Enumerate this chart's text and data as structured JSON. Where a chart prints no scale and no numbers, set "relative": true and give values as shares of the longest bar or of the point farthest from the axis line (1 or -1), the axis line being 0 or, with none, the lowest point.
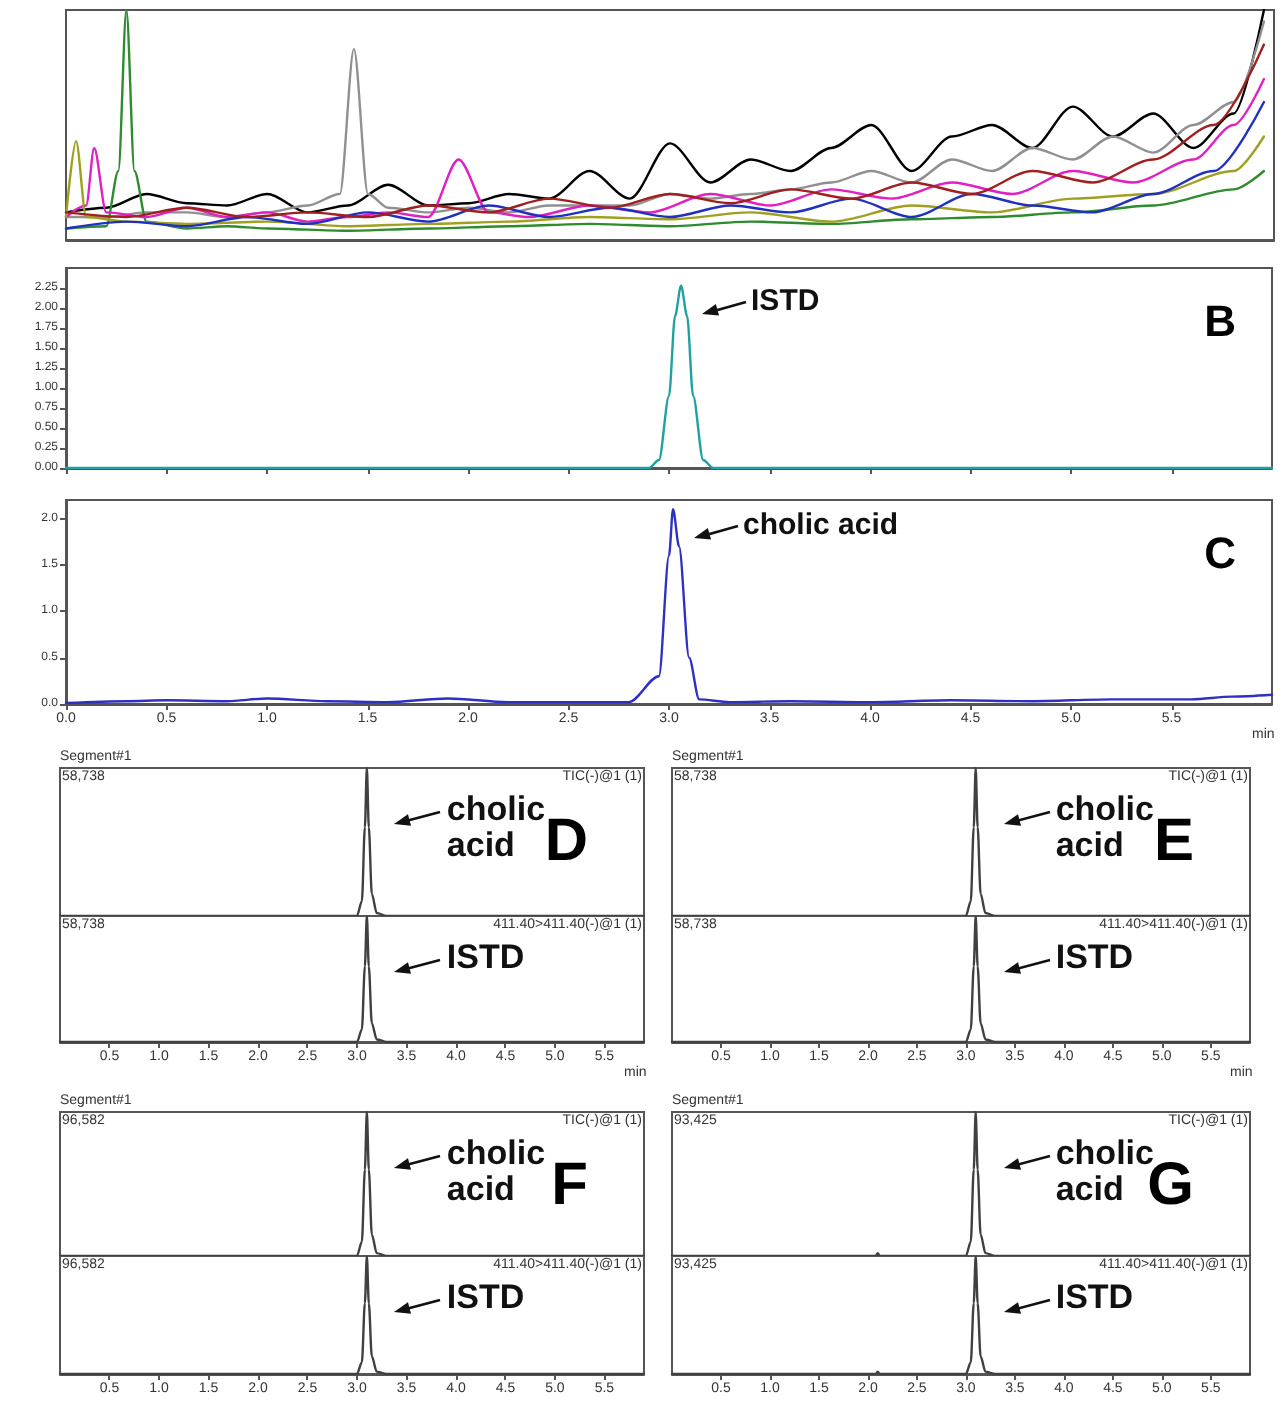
{
  "chart_data": [
    {
      "type": "line",
      "relative": true,
      "tick_labels": false,
      "xlim": [
        0,
        6
      ],
      "series": [
        {
          "color": "#000000",
          "x": [
            0,
            0.2,
            0.4,
            0.6,
            0.8,
            1.0,
            1.2,
            1.4,
            1.6,
            1.8,
            2.0,
            2.2,
            2.4,
            2.6,
            2.8,
            3.0,
            3.2,
            3.4,
            3.6,
            3.8,
            4.0,
            4.2,
            4.4,
            4.6,
            4.8,
            5.0,
            5.2,
            5.4,
            5.6,
            5.8,
            5.95
          ],
          "values": [
            0.12,
            0.14,
            0.2,
            0.16,
            0.15,
            0.2,
            0.12,
            0.15,
            0.24,
            0.15,
            0.16,
            0.2,
            0.18,
            0.3,
            0.18,
            0.42,
            0.25,
            0.35,
            0.3,
            0.4,
            0.5,
            0.3,
            0.45,
            0.5,
            0.4,
            0.58,
            0.45,
            0.55,
            0.4,
            0.55,
            1
          ]
        },
        {
          "color": "#909090",
          "x": [
            0,
            0.2,
            0.4,
            0.6,
            0.8,
            1.0,
            1.2,
            1.36,
            1.43,
            1.5,
            1.6,
            1.8,
            2.0,
            2.2,
            2.4,
            2.6,
            2.8,
            3.0,
            3.2,
            3.4,
            3.6,
            3.8,
            4.0,
            4.2,
            4.4,
            4.6,
            4.8,
            5.0,
            5.2,
            5.4,
            5.6,
            5.8,
            5.95
          ],
          "values": [
            0.1,
            0.1,
            0.12,
            0.12,
            0.1,
            0.12,
            0.15,
            0.2,
            0.83,
            0.2,
            0.14,
            0.12,
            0.14,
            0.12,
            0.15,
            0.15,
            0.15,
            0.2,
            0.18,
            0.2,
            0.22,
            0.25,
            0.3,
            0.25,
            0.35,
            0.3,
            0.4,
            0.35,
            0.45,
            0.38,
            0.5,
            0.6,
            0.95
          ]
        },
        {
          "color": "#2e8b2e",
          "x": [
            0,
            0.2,
            0.26,
            0.3,
            0.34,
            0.4,
            0.6,
            0.8,
            1.0,
            1.4,
            1.8,
            2.2,
            2.6,
            3.0,
            3.4,
            3.8,
            4.2,
            4.6,
            5.0,
            5.4,
            5.8,
            5.95
          ],
          "values": [
            0.05,
            0.06,
            0.3,
            1,
            0.3,
            0.08,
            0.05,
            0.06,
            0.05,
            0.04,
            0.05,
            0.06,
            0.07,
            0.06,
            0.08,
            0.07,
            0.09,
            0.1,
            0.12,
            0.15,
            0.22,
            0.3
          ]
        },
        {
          "color": "#e020c0",
          "x": [
            0,
            0.1,
            0.14,
            0.2,
            0.4,
            0.6,
            0.8,
            1.0,
            1.2,
            1.4,
            1.6,
            1.8,
            1.95,
            2.1,
            2.3,
            2.6,
            2.9,
            3.2,
            3.5,
            3.8,
            4.1,
            4.4,
            4.7,
            5.0,
            5.3,
            5.6,
            5.8,
            5.95
          ],
          "values": [
            0.1,
            0.15,
            0.4,
            0.12,
            0.1,
            0.14,
            0.1,
            0.12,
            0.08,
            0.1,
            0.12,
            0.1,
            0.35,
            0.12,
            0.1,
            0.15,
            0.12,
            0.2,
            0.15,
            0.22,
            0.18,
            0.25,
            0.2,
            0.3,
            0.25,
            0.35,
            0.5,
            0.7
          ]
        },
        {
          "color": "#a0a020",
          "x": [
            0,
            0.05,
            0.1,
            0.3,
            0.6,
            1.0,
            1.4,
            1.8,
            2.2,
            2.6,
            3.0,
            3.4,
            3.8,
            4.2,
            4.6,
            5.0,
            5.4,
            5.8,
            5.95
          ],
          "values": [
            0.1,
            0.43,
            0.1,
            0.08,
            0.07,
            0.08,
            0.06,
            0.07,
            0.08,
            0.1,
            0.09,
            0.12,
            0.08,
            0.15,
            0.12,
            0.18,
            0.2,
            0.3,
            0.45
          ]
        },
        {
          "color": "#2030c0",
          "x": [
            0,
            0.3,
            0.6,
            0.9,
            1.2,
            1.5,
            1.8,
            2.1,
            2.4,
            2.7,
            3.0,
            3.3,
            3.6,
            3.9,
            4.2,
            4.5,
            4.8,
            5.1,
            5.4,
            5.7,
            5.95
          ],
          "values": [
            0.05,
            0.08,
            0.06,
            0.1,
            0.07,
            0.12,
            0.08,
            0.15,
            0.1,
            0.14,
            0.1,
            0.15,
            0.12,
            0.18,
            0.1,
            0.2,
            0.15,
            0.12,
            0.2,
            0.3,
            0.6
          ]
        },
        {
          "color": "#a02020",
          "x": [
            0,
            0.3,
            0.6,
            0.9,
            1.2,
            1.5,
            1.8,
            2.1,
            2.4,
            2.7,
            3.0,
            3.3,
            3.6,
            3.9,
            4.2,
            4.5,
            4.8,
            5.1,
            5.4,
            5.7,
            5.95
          ],
          "values": [
            0.12,
            0.1,
            0.14,
            0.1,
            0.12,
            0.1,
            0.15,
            0.12,
            0.18,
            0.14,
            0.2,
            0.16,
            0.22,
            0.18,
            0.25,
            0.2,
            0.3,
            0.25,
            0.35,
            0.5,
            0.85
          ]
        }
      ]
    },
    {
      "type": "line",
      "title": "B",
      "tick_labels": "y",
      "xlim": [
        0,
        6
      ],
      "xticks": [
        {
          "value": 0,
          "label": null
        },
        {
          "value": 0.5,
          "label": null
        },
        {
          "value": 1,
          "label": null
        },
        {
          "value": 1.5,
          "label": null
        },
        {
          "value": 2,
          "label": null
        },
        {
          "value": 2.5,
          "label": null
        },
        {
          "value": 3,
          "label": null
        },
        {
          "value": 3.5,
          "label": null
        },
        {
          "value": 4,
          "label": null
        },
        {
          "value": 4.5,
          "label": null
        },
        {
          "value": 5,
          "label": null
        },
        {
          "value": 5.5,
          "label": null
        }
      ],
      "ylim": [
        0,
        2.5
      ],
      "yticks": [
        {
          "value": 0,
          "label": "0.00"
        },
        {
          "value": 0.25,
          "label": "0.25"
        },
        {
          "value": 0.5,
          "label": "0.50"
        },
        {
          "value": 0.75,
          "label": "0.75"
        },
        {
          "value": 1,
          "label": "1.00"
        },
        {
          "value": 1.25,
          "label": "1.25"
        },
        {
          "value": 1.5,
          "label": "1.50"
        },
        {
          "value": 1.75,
          "label": "1.75"
        },
        {
          "value": 2,
          "label": "2.00"
        },
        {
          "value": 2.25,
          "label": "2.25"
        }
      ],
      "annotations": [
        {
          "text": "ISTD",
          "x": 3.06,
          "y": 2.28
        }
      ],
      "series": [
        {
          "color": "#20a0a0",
          "x": [
            0,
            2.9,
            2.95,
            3.0,
            3.03,
            3.06,
            3.09,
            3.12,
            3.17,
            3.22,
            6
          ],
          "values": [
            0,
            0,
            0.1,
            0.9,
            1.9,
            2.28,
            1.9,
            0.9,
            0.1,
            0,
            0
          ]
        }
      ]
    },
    {
      "type": "line",
      "title": "C",
      "xlabel": "min",
      "xlim": [
        0,
        6
      ],
      "xticks": [
        {
          "value": 0,
          "label": "0.0"
        },
        0.5,
        {
          "value": 1,
          "label": "1.0"
        },
        1.5,
        {
          "value": 2,
          "label": "2.0"
        },
        2.5,
        {
          "value": 3,
          "label": "3.0"
        },
        3.5,
        {
          "value": 4,
          "label": "4.0"
        },
        4.5,
        {
          "value": 5,
          "label": "5.0"
        },
        5.5
      ],
      "ylim": [
        0,
        2.2
      ],
      "yticks": [
        {
          "value": 0,
          "label": "0.0"
        },
        0.5,
        {
          "value": 1,
          "label": "1.0"
        },
        1.5,
        {
          "value": 2,
          "label": "2.0"
        }
      ],
      "annotations": [
        {
          "text": "cholic acid",
          "x": 3.02,
          "y": 2.1
        }
      ],
      "series": [
        {
          "color": "#3030c0",
          "x": [
            0,
            0.3,
            0.5,
            0.8,
            1.0,
            1.3,
            1.6,
            1.9,
            2.2,
            2.5,
            2.8,
            2.95,
            3.0,
            3.02,
            3.05,
            3.1,
            3.15,
            3.3,
            3.6,
            4.0,
            4.4,
            4.8,
            5.2,
            5.6,
            5.8,
            6.0
          ],
          "values": [
            0.01,
            0.03,
            0.04,
            0.03,
            0.06,
            0.03,
            0.02,
            0.06,
            0.02,
            0.02,
            0.02,
            0.3,
            1.6,
            2.1,
            1.7,
            0.5,
            0.05,
            0.02,
            0.03,
            0.02,
            0.04,
            0.03,
            0.05,
            0.05,
            0.08,
            0.1
          ]
        }
      ]
    },
    {
      "type": "line",
      "title": "D",
      "relative": true,
      "tick_labels": false,
      "xlim": [
        0,
        5.9
      ],
      "annotations": [
        "Segment#1",
        "58,738",
        "TIC(-)@1 (1)",
        {
          "text": "cholic acid",
          "x": 3.1,
          "y": 1
        }
      ],
      "series": [
        {
          "color": "#404040",
          "x": [
            0,
            2.9,
            3.0,
            3.05,
            3.08,
            3.1,
            3.12,
            3.15,
            3.2,
            3.3,
            5.9
          ],
          "values": [
            0,
            0,
            0,
            0.1,
            0.6,
            1,
            0.6,
            0.15,
            0.02,
            0,
            0
          ]
        }
      ]
    },
    {
      "type": "line",
      "relative": true,
      "tick_labels": "x",
      "xlabel": "min",
      "xlim": [
        0,
        5.9
      ],
      "xticks": [
        0.5,
        {
          "value": 1,
          "label": "1.0"
        },
        1.5,
        {
          "value": 2,
          "label": "2.0"
        },
        2.5,
        {
          "value": 3,
          "label": "3.0"
        },
        3.5,
        {
          "value": 4,
          "label": "4.0"
        },
        4.5,
        {
          "value": 5,
          "label": "5.0"
        },
        5.5
      ],
      "annotations": [
        "58,738",
        "411.40>411.40(-)@1 (1)",
        {
          "text": "ISTD",
          "x": 3.1,
          "y": 1
        }
      ],
      "series": [
        {
          "color": "#404040",
          "x": [
            0,
            2.9,
            3.0,
            3.05,
            3.08,
            3.1,
            3.12,
            3.15,
            3.2,
            3.3,
            5.9
          ],
          "values": [
            0,
            0,
            0,
            0.1,
            0.6,
            1,
            0.6,
            0.15,
            0.02,
            0,
            0
          ]
        }
      ]
    },
    {
      "type": "line",
      "title": "E",
      "relative": true,
      "tick_labels": false,
      "xlim": [
        0,
        5.9
      ],
      "annotations": [
        "Segment#1",
        "58,738",
        "TIC(-)@1 (1)",
        {
          "text": "cholic acid",
          "x": 3.1,
          "y": 1
        }
      ],
      "series": [
        {
          "color": "#404040",
          "x": [
            0,
            2.9,
            3.0,
            3.05,
            3.08,
            3.1,
            3.12,
            3.15,
            3.2,
            3.3,
            5.9
          ],
          "values": [
            0,
            0,
            0,
            0.1,
            0.6,
            1,
            0.6,
            0.15,
            0.02,
            0,
            0
          ]
        }
      ]
    },
    {
      "type": "line",
      "relative": true,
      "tick_labels": "x",
      "xlabel": "min",
      "xlim": [
        0,
        5.9
      ],
      "xticks": [
        0.5,
        {
          "value": 1,
          "label": "1.0"
        },
        1.5,
        {
          "value": 2,
          "label": "2.0"
        },
        2.5,
        {
          "value": 3,
          "label": "3.0"
        },
        3.5,
        {
          "value": 4,
          "label": "4.0"
        },
        4.5,
        {
          "value": 5,
          "label": "5.0"
        },
        5.5
      ],
      "annotations": [
        "58,738",
        "411.40>411.40(-)@1 (1)",
        {
          "text": "ISTD",
          "x": 3.1,
          "y": 1
        }
      ],
      "series": [
        {
          "color": "#404040",
          "x": [
            0,
            2.9,
            3.0,
            3.05,
            3.08,
            3.1,
            3.12,
            3.15,
            3.2,
            3.3,
            5.9
          ],
          "values": [
            0,
            0,
            0,
            0.1,
            0.6,
            1,
            0.6,
            0.15,
            0.02,
            0,
            0
          ]
        }
      ]
    },
    {
      "type": "line",
      "title": "F",
      "relative": true,
      "tick_labels": false,
      "xlim": [
        0,
        5.9
      ],
      "annotations": [
        "Segment#1",
        "96,582",
        "TIC(-)@1 (1)",
        {
          "text": "cholic acid",
          "x": 3.1,
          "y": 1
        }
      ],
      "series": [
        {
          "color": "#404040",
          "x": [
            0,
            2.9,
            3.0,
            3.05,
            3.08,
            3.1,
            3.12,
            3.15,
            3.2,
            3.3,
            5.9
          ],
          "values": [
            0,
            0,
            0,
            0.1,
            0.6,
            1,
            0.6,
            0.15,
            0.02,
            0,
            0
          ]
        }
      ]
    },
    {
      "type": "line",
      "relative": true,
      "tick_labels": "x",
      "xlim": [
        0,
        5.9
      ],
      "xticks": [
        0.5,
        {
          "value": 1,
          "label": "1.0"
        },
        1.5,
        {
          "value": 2,
          "label": "2.0"
        },
        2.5,
        {
          "value": 3,
          "label": "3.0"
        },
        3.5,
        {
          "value": 4,
          "label": "4.0"
        },
        4.5,
        {
          "value": 5,
          "label": "5.0"
        },
        5.5
      ],
      "annotations": [
        "96,582",
        "411.40>411.40(-)@1 (1)",
        {
          "text": "ISTD",
          "x": 3.1,
          "y": 1
        }
      ],
      "series": [
        {
          "color": "#404040",
          "x": [
            0,
            2.9,
            3.0,
            3.05,
            3.08,
            3.1,
            3.12,
            3.15,
            3.2,
            3.3,
            5.9
          ],
          "values": [
            0,
            0,
            0,
            0.1,
            0.6,
            1,
            0.6,
            0.15,
            0.02,
            0,
            0
          ]
        }
      ]
    },
    {
      "type": "line",
      "title": "G",
      "relative": true,
      "tick_labels": false,
      "xlim": [
        0,
        5.9
      ],
      "annotations": [
        "Segment#1",
        "93,425",
        "TIC(-)@1 (1)",
        {
          "text": "cholic acid",
          "x": 3.1,
          "y": 1
        }
      ],
      "series": [
        {
          "color": "#404040",
          "x": [
            0,
            2.08,
            2.1,
            2.12,
            2.9,
            3.0,
            3.05,
            3.08,
            3.1,
            3.12,
            3.15,
            3.2,
            3.3,
            5.9
          ],
          "values": [
            0,
            0,
            0.02,
            0,
            0,
            0,
            0.1,
            0.6,
            1,
            0.6,
            0.15,
            0.02,
            0,
            0
          ]
        }
      ]
    },
    {
      "type": "line",
      "relative": true,
      "tick_labels": "x",
      "xlim": [
        0,
        5.9
      ],
      "xticks": [
        0.5,
        {
          "value": 1,
          "label": "1.0"
        },
        1.5,
        {
          "value": 2,
          "label": "2.0"
        },
        2.5,
        {
          "value": 3,
          "label": "3.0"
        },
        3.5,
        {
          "value": 4,
          "label": "4.0"
        },
        4.5,
        {
          "value": 5,
          "label": "5.0"
        },
        5.5
      ],
      "annotations": [
        "93,425",
        "411.40>411.40(-)@1 (1)",
        {
          "text": "ISTD",
          "x": 3.1,
          "y": 1
        }
      ],
      "series": [
        {
          "color": "#404040",
          "x": [
            0,
            2.08,
            2.1,
            2.12,
            2.9,
            3.0,
            3.05,
            3.08,
            3.1,
            3.12,
            3.15,
            3.2,
            3.3,
            5.9
          ],
          "values": [
            0,
            0,
            0.02,
            0,
            0,
            0,
            0.1,
            0.6,
            1,
            0.6,
            0.15,
            0.02,
            0,
            0
          ]
        }
      ]
    }
  ]
}
